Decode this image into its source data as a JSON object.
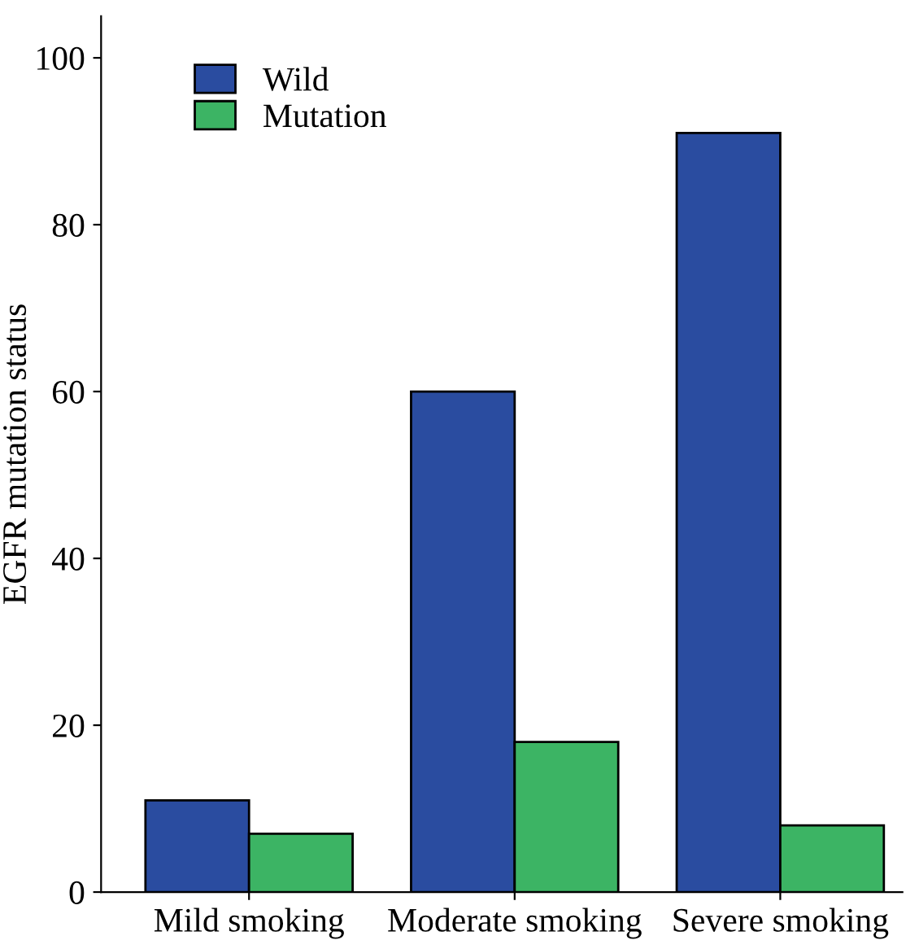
{
  "chart_data": {
    "type": "bar",
    "ylabel": "EGFR mutation status",
    "categories": [
      "Mild smoking",
      "Moderate smoking",
      "Severe smoking"
    ],
    "series": [
      {
        "name": "Wild",
        "color": "#2a4ca0",
        "values": [
          11,
          60,
          91
        ]
      },
      {
        "name": "Mutation",
        "color": "#3cb464",
        "values": [
          7,
          18,
          8
        ]
      }
    ],
    "ylim": [
      0,
      105
    ],
    "yticks": [
      0,
      20,
      40,
      60,
      80,
      100
    ],
    "grid": false,
    "legend": "top left"
  }
}
